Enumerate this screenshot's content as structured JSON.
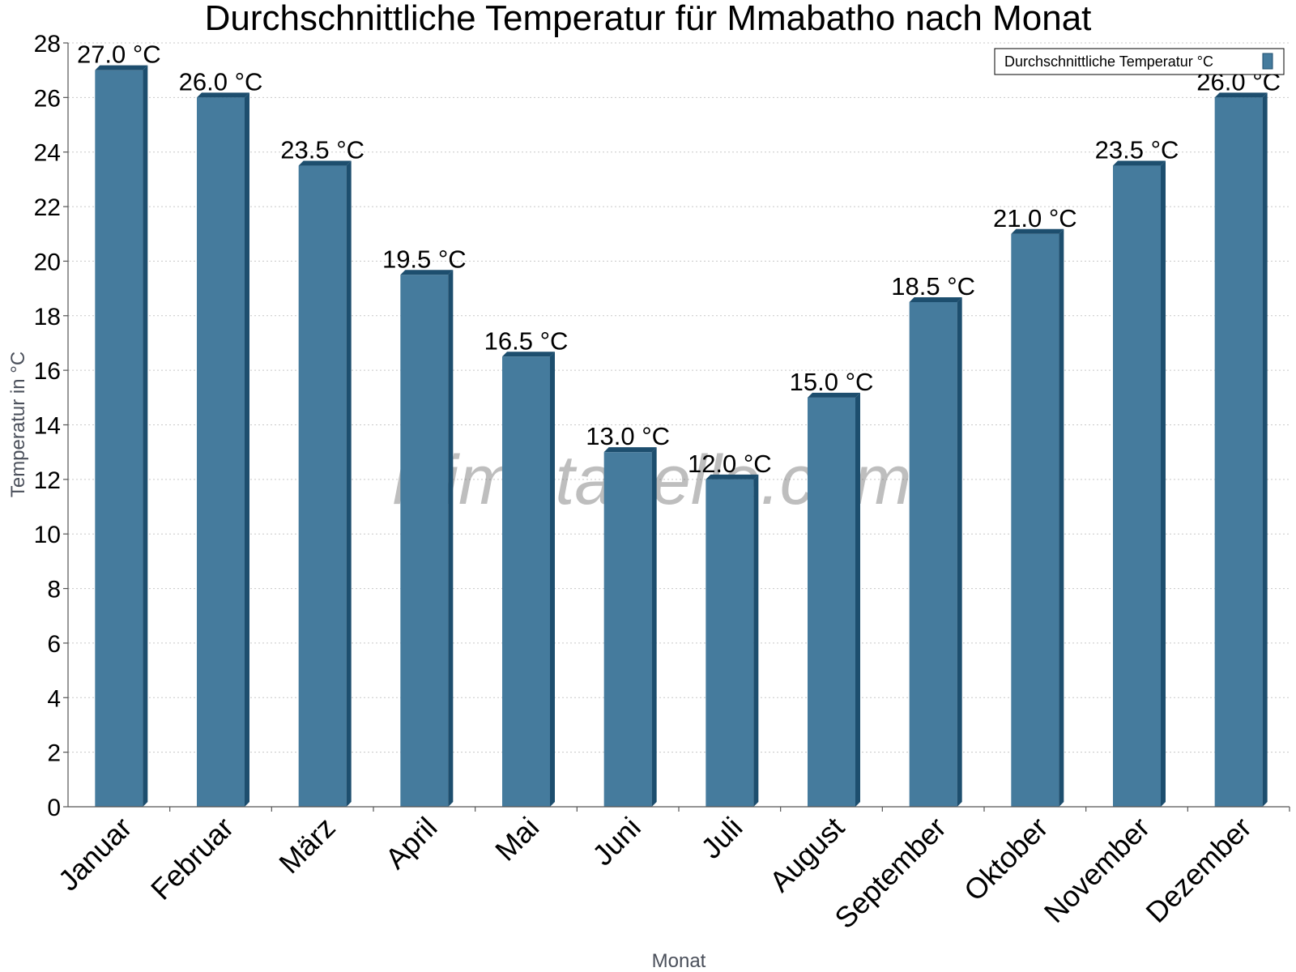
{
  "chart_data": {
    "type": "bar",
    "title": "Durchschnittliche Temperatur für Mmabatho nach Monat",
    "xlabel": "Monat",
    "ylabel": "Temperatur in °C",
    "categories": [
      "Januar",
      "Februar",
      "März",
      "April",
      "Mai",
      "Juni",
      "Juli",
      "August",
      "September",
      "Oktober",
      "November",
      "Dezember"
    ],
    "series": [
      {
        "name": "Durchschnittliche Temperatur °C",
        "values": [
          27.0,
          26.0,
          23.5,
          19.5,
          16.5,
          13.0,
          12.0,
          15.0,
          18.5,
          21.0,
          23.5,
          26.0
        ],
        "color": "#457b9d",
        "side_color": "#1d4e6e"
      }
    ],
    "data_labels": [
      "27.0 °C",
      "26.0 °C",
      "23.5 °C",
      "19.5 °C",
      "16.5 °C",
      "13.0 °C",
      "12.0 °C",
      "15.0 °C",
      "18.5 °C",
      "21.0 °C",
      "23.5 °C",
      "26.0 °C"
    ],
    "ylim": [
      0,
      28
    ],
    "yticks": [
      0,
      2,
      4,
      6,
      8,
      10,
      12,
      14,
      16,
      18,
      20,
      22,
      24,
      26,
      28
    ],
    "grid": true,
    "legend_position": "top-right",
    "watermark": "klimatabelle.com"
  }
}
